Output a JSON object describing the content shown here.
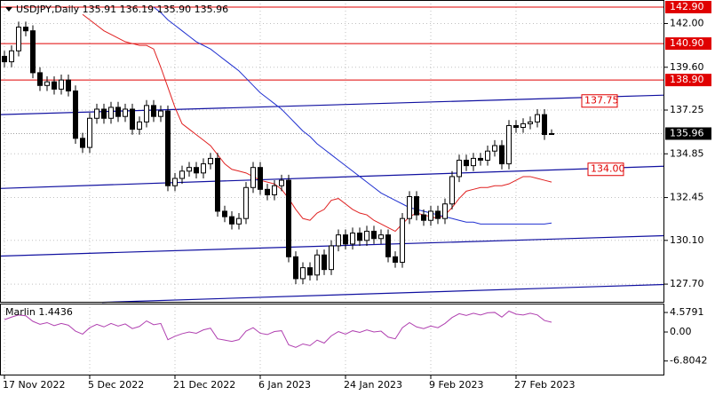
{
  "chart_data": {
    "type": "candlestick",
    "title": "USDJPY,Daily  135.91 136.19 135.90 135.96",
    "categories": [
      "17 Nov 2022",
      null,
      null,
      null,
      null,
      null,
      null,
      null,
      null,
      null,
      null,
      null,
      "5 Dec 2022",
      null,
      null,
      null,
      null,
      null,
      null,
      null,
      null,
      null,
      null,
      null,
      "21 Dec 2022",
      null,
      null,
      null,
      null,
      null,
      null,
      null,
      null,
      null,
      null,
      null,
      "6 Jan 2023",
      null,
      null,
      null,
      null,
      null,
      null,
      null,
      null,
      null,
      null,
      null,
      "24 Jan 2023",
      null,
      null,
      null,
      null,
      null,
      null,
      null,
      null,
      null,
      null,
      null,
      "9 Feb 2023",
      null,
      null,
      null,
      null,
      null,
      null,
      null,
      null,
      null,
      null,
      null,
      "27 Feb 2023",
      null,
      null,
      null,
      null,
      null
    ],
    "open": [
      140.2,
      139.9,
      140.5,
      141.8,
      141.6,
      139.3,
      138.6,
      138.8,
      138.4,
      138.9,
      138.3,
      135.7,
      135.2,
      136.8,
      137.3,
      136.8,
      137.4,
      136.9,
      137.3,
      136.2,
      136.6,
      137.5,
      136.9,
      137.2,
      133.1,
      133.5,
      133.9,
      134.1,
      133.8,
      134.3,
      134.6,
      131.7,
      131.4,
      131.0,
      131.3,
      133.0,
      134.1,
      132.9,
      132.6,
      133.1,
      133.4,
      129.2,
      128.0,
      128.6,
      128.2,
      129.3,
      128.5,
      129.8,
      130.4,
      129.9,
      130.5,
      130.1,
      130.6,
      130.2,
      130.4,
      129.2,
      128.9,
      131.3,
      132.5,
      131.5,
      131.2,
      131.7,
      131.3,
      132.1,
      133.6,
      134.5,
      134.2,
      134.6,
      134.5,
      135.0,
      135.3,
      134.3,
      136.4,
      136.3,
      136.5,
      136.6,
      137.0,
      135.91
    ],
    "high": [
      140.5,
      140.8,
      142.1,
      142.1,
      141.9,
      139.6,
      139.1,
      139.1,
      139.2,
      139.2,
      138.6,
      136.0,
      137.1,
      137.6,
      137.6,
      137.7,
      137.7,
      137.6,
      137.6,
      136.9,
      137.8,
      137.8,
      137.5,
      137.5,
      133.8,
      134.2,
      134.4,
      134.4,
      134.6,
      134.9,
      134.9,
      132.0,
      131.7,
      131.6,
      133.3,
      134.4,
      134.4,
      133.2,
      133.4,
      133.7,
      133.7,
      129.5,
      128.9,
      128.9,
      129.6,
      129.6,
      130.1,
      130.7,
      130.7,
      130.8,
      130.8,
      130.9,
      130.9,
      130.7,
      130.7,
      129.5,
      131.6,
      132.8,
      132.8,
      131.8,
      132.0,
      132.0,
      132.4,
      133.9,
      134.8,
      134.8,
      134.9,
      134.9,
      135.3,
      135.6,
      135.6,
      136.7,
      136.7,
      136.8,
      136.9,
      137.3,
      137.3,
      136.19
    ],
    "low": [
      139.6,
      139.6,
      140.2,
      141.3,
      139.0,
      138.3,
      138.3,
      138.1,
      138.1,
      138.0,
      135.4,
      134.9,
      134.9,
      136.5,
      136.5,
      136.5,
      136.6,
      136.6,
      135.9,
      135.9,
      136.3,
      136.6,
      136.6,
      132.8,
      132.8,
      133.2,
      133.6,
      133.5,
      133.5,
      134.0,
      131.4,
      131.1,
      130.7,
      130.7,
      131.0,
      132.7,
      132.6,
      132.3,
      132.3,
      132.8,
      128.9,
      127.7,
      127.7,
      127.9,
      127.9,
      128.2,
      128.2,
      129.5,
      129.6,
      129.6,
      129.8,
      129.8,
      129.9,
      129.9,
      128.9,
      128.6,
      128.6,
      131.0,
      131.2,
      130.9,
      130.9,
      131.0,
      131.0,
      131.8,
      133.3,
      133.9,
      133.9,
      134.2,
      134.2,
      134.7,
      134.0,
      134.0,
      136.0,
      136.0,
      136.2,
      136.3,
      135.61,
      135.9
    ],
    "close": [
      139.9,
      140.5,
      141.8,
      141.6,
      139.3,
      138.6,
      138.8,
      138.4,
      138.9,
      138.3,
      135.7,
      135.2,
      136.8,
      137.3,
      136.8,
      137.4,
      136.9,
      137.3,
      136.2,
      136.6,
      137.5,
      136.9,
      137.2,
      133.1,
      133.5,
      133.9,
      134.1,
      133.8,
      134.3,
      134.6,
      131.7,
      131.4,
      131.0,
      131.3,
      133.0,
      134.1,
      132.9,
      132.6,
      133.1,
      133.4,
      129.2,
      128.0,
      128.6,
      128.2,
      129.3,
      128.5,
      129.8,
      130.4,
      129.9,
      130.5,
      130.1,
      130.6,
      130.2,
      130.4,
      129.2,
      128.9,
      131.3,
      132.5,
      131.5,
      131.2,
      131.7,
      131.3,
      132.1,
      133.6,
      134.5,
      134.2,
      134.6,
      134.5,
      135.0,
      135.3,
      134.3,
      136.4,
      136.3,
      136.5,
      136.6,
      137.0,
      135.91,
      135.96
    ],
    "lines": [
      {
        "color": "#e02020",
        "values": [
          null,
          null,
          null,
          null,
          null,
          null,
          null,
          null,
          null,
          null,
          null,
          142.5,
          142.2,
          141.9,
          141.6,
          141.4,
          141.2,
          141.0,
          140.9,
          140.8,
          140.8,
          140.6,
          139.6,
          138.5,
          137.4,
          136.5,
          136.2,
          135.9,
          135.6,
          135.3,
          134.8,
          134.3,
          134.0,
          133.9,
          133.8,
          133.6,
          133.4,
          133.3,
          133.2,
          132.9,
          132.4,
          131.8,
          131.3,
          131.2,
          131.6,
          131.8,
          132.3,
          132.4,
          132.1,
          131.8,
          131.6,
          131.5,
          131.2,
          131.0,
          130.8,
          130.6,
          131.0,
          131.4,
          131.6,
          131.5,
          131.4,
          131.3,
          131.5,
          131.9,
          132.4,
          132.8,
          132.9,
          133.0,
          133.0,
          133.1,
          133.1,
          133.2,
          133.4,
          133.6,
          133.6,
          133.5,
          133.4,
          133.3
        ]
      },
      {
        "color": "#2030d0",
        "values": [
          null,
          null,
          null,
          null,
          null,
          null,
          null,
          null,
          null,
          null,
          null,
          null,
          null,
          null,
          null,
          null,
          null,
          null,
          null,
          null,
          null,
          142.9,
          142.6,
          142.2,
          141.9,
          141.6,
          141.3,
          141.0,
          140.8,
          140.6,
          140.3,
          140.0,
          139.7,
          139.4,
          139.0,
          138.6,
          138.2,
          137.9,
          137.6,
          137.3,
          136.9,
          136.5,
          136.1,
          135.8,
          135.4,
          135.1,
          134.8,
          134.5,
          134.2,
          133.9,
          133.6,
          133.3,
          133.0,
          132.7,
          132.5,
          132.3,
          132.1,
          131.9,
          131.8,
          131.7,
          131.6,
          131.5,
          131.4,
          131.3,
          131.2,
          131.1,
          131.1,
          131.0,
          131.0,
          131.0,
          131.0,
          131.0,
          131.0,
          131.0,
          131.0,
          131.0,
          131.0,
          131.05
        ]
      }
    ],
    "trendlines": [
      {
        "values": [
          137.0,
          138.07
        ]
      },
      {
        "values": [
          132.95,
          134.17
        ]
      },
      {
        "values": [
          129.24,
          130.36
        ]
      },
      {
        "values": [
          126.7,
          127.68
        ]
      }
    ],
    "trend_labels": [
      {
        "value": 137.75,
        "label": "137.75"
      },
      {
        "value": 134.0,
        "label": "134.00"
      }
    ],
    "levels": [
      {
        "value": 142.9,
        "label": "142.90"
      },
      {
        "value": 140.9,
        "label": "140.90"
      },
      {
        "value": 138.9,
        "label": "138.90"
      }
    ],
    "last_price": {
      "value": 135.96,
      "label": "135.96"
    },
    "ylim": [
      126.73,
      143.29
    ],
    "yticks": [
      {
        "value": 142.0,
        "label": "142.00"
      },
      {
        "value": 139.6,
        "label": "139.60"
      },
      {
        "value": 137.25,
        "label": "137.25"
      },
      {
        "value": 134.85,
        "label": "134.85"
      },
      {
        "value": 132.45,
        "label": "132.45"
      },
      {
        "value": 130.1,
        "label": "130.10"
      },
      {
        "value": 127.7,
        "label": "127.70"
      }
    ],
    "grid": true,
    "indicator": {
      "name": "Marlin 1.4436",
      "color": "#b040b0",
      "values": [
        2.9,
        3.5,
        4.0,
        3.8,
        2.5,
        1.8,
        2.2,
        1.5,
        2.0,
        1.6,
        0.2,
        -0.5,
        1.0,
        1.8,
        1.2,
        2.0,
        1.4,
        1.9,
        0.8,
        1.3,
        2.6,
        1.7,
        2.0,
        -1.8,
        -1.0,
        -0.4,
        0.0,
        -0.3,
        0.5,
        0.9,
        -1.6,
        -1.9,
        -2.2,
        -1.8,
        0.2,
        1.0,
        -0.3,
        -0.6,
        0.1,
        0.3,
        -3.0,
        -3.6,
        -2.8,
        -3.2,
        -1.9,
        -2.6,
        -0.9,
        0.1,
        -0.5,
        0.3,
        -0.1,
        0.5,
        0.0,
        0.2,
        -1.2,
        -1.6,
        1.0,
        2.2,
        1.2,
        0.8,
        1.4,
        1.0,
        2.0,
        3.4,
        4.3,
        3.9,
        4.4,
        4.0,
        4.5,
        4.6,
        3.5,
        4.9,
        4.2,
        4.0,
        4.4,
        4.0,
        2.7,
        2.3
      ],
      "ylim": [
        -10.2,
        6.67
      ],
      "yticks": [
        4.5791,
        {
          "value": 0,
          "label": "0.00"
        },
        -6.8042
      ]
    }
  }
}
